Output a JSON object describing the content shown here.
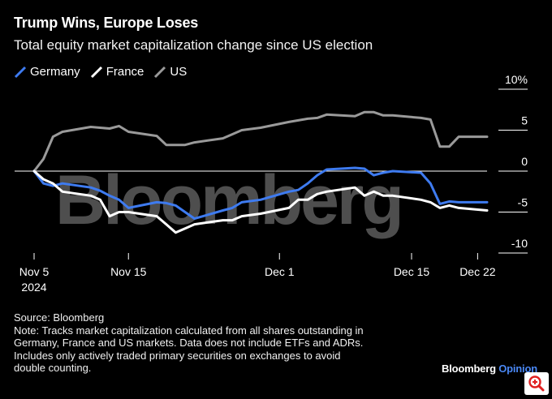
{
  "title": "Trump Wins, Europe Loses",
  "subtitle": "Total equity market capitalization change since US election",
  "legend": [
    {
      "label": "Germany",
      "color": "#3e7bf0"
    },
    {
      "label": "France",
      "color": "#ffffff"
    },
    {
      "label": "US",
      "color": "#9a9a9a"
    }
  ],
  "watermark": "Bloomberg",
  "footer": {
    "source": "Source: Bloomberg",
    "note_lines": [
      "Note: Tracks market capitalization calculated from all shares outstanding in",
      "Germany, France and US markets. Data does not include ETFs and ADRs.",
      "Includes only actively traded primary securities on exchanges to avoid",
      "double counting."
    ]
  },
  "brand": {
    "name": "Bloomberg",
    "suffix": "Opinion"
  },
  "zoom_icon": "zoom-in-icon",
  "chart_data": {
    "type": "line",
    "title": "Trump Wins, Europe Loses",
    "subtitle": "Total equity market capitalization change since US election",
    "ylabel": "",
    "ylim": [
      -10,
      10
    ],
    "y_ticks": [
      10,
      5,
      0,
      -5,
      -10
    ],
    "y_tick_labels": [
      "10%",
      "5",
      "0",
      "-5",
      "-10"
    ],
    "x_range": [
      "2024-11-05",
      "2024-12-23"
    ],
    "x_ticks": [
      {
        "date": "2024-11-05",
        "label": "Nov 5",
        "sublabel": "2024"
      },
      {
        "date": "2024-11-15",
        "label": "Nov 15",
        "sublabel": ""
      },
      {
        "date": "2024-12-01",
        "label": "Dec 1",
        "sublabel": ""
      },
      {
        "date": "2024-12-15",
        "label": "Dec 15",
        "sublabel": ""
      },
      {
        "date": "2024-12-22",
        "label": "Dec 22",
        "sublabel": ""
      }
    ],
    "zero_line": true,
    "grid": false,
    "legend_position": "top-left",
    "series": [
      {
        "name": "US",
        "color": "#9a9a9a",
        "points": [
          [
            "2024-11-05",
            0
          ],
          [
            "2024-11-06",
            1.5
          ],
          [
            "2024-11-07",
            4.2
          ],
          [
            "2024-11-08",
            4.8
          ],
          [
            "2024-11-11",
            5.4
          ],
          [
            "2024-11-12",
            5.3
          ],
          [
            "2024-11-13",
            5.2
          ],
          [
            "2024-11-14",
            5.5
          ],
          [
            "2024-11-15",
            4.8
          ],
          [
            "2024-11-18",
            4.3
          ],
          [
            "2024-11-19",
            3.2
          ],
          [
            "2024-11-20",
            3.2
          ],
          [
            "2024-11-21",
            3.2
          ],
          [
            "2024-11-22",
            3.5
          ],
          [
            "2024-11-25",
            4.0
          ],
          [
            "2024-11-26",
            4.5
          ],
          [
            "2024-11-27",
            5.0
          ],
          [
            "2024-11-29",
            5.3
          ],
          [
            "2024-12-02",
            6.0
          ],
          [
            "2024-12-03",
            6.2
          ],
          [
            "2024-12-04",
            6.4
          ],
          [
            "2024-12-05",
            6.5
          ],
          [
            "2024-12-06",
            6.9
          ],
          [
            "2024-12-09",
            6.7
          ],
          [
            "2024-12-10",
            7.2
          ],
          [
            "2024-12-11",
            7.2
          ],
          [
            "2024-12-12",
            6.8
          ],
          [
            "2024-12-13",
            6.8
          ],
          [
            "2024-12-16",
            6.5
          ],
          [
            "2024-12-17",
            6.3
          ],
          [
            "2024-12-18",
            3.0
          ],
          [
            "2024-12-19",
            3.0
          ],
          [
            "2024-12-20",
            4.2
          ],
          [
            "2024-12-23",
            4.2
          ]
        ]
      },
      {
        "name": "Germany",
        "color": "#3e7bf0",
        "points": [
          [
            "2024-11-05",
            0
          ],
          [
            "2024-11-06",
            -1.5
          ],
          [
            "2024-11-07",
            -1.8
          ],
          [
            "2024-11-08",
            -1.5
          ],
          [
            "2024-11-11",
            -2.0
          ],
          [
            "2024-11-12",
            -2.4
          ],
          [
            "2024-11-13",
            -3.0
          ],
          [
            "2024-11-14",
            -3.5
          ],
          [
            "2024-11-15",
            -4.5
          ],
          [
            "2024-11-18",
            -3.8
          ],
          [
            "2024-11-19",
            -3.9
          ],
          [
            "2024-11-20",
            -4.2
          ],
          [
            "2024-11-21",
            -5.0
          ],
          [
            "2024-11-22",
            -5.8
          ],
          [
            "2024-11-25",
            -4.8
          ],
          [
            "2024-11-26",
            -4.5
          ],
          [
            "2024-11-27",
            -3.8
          ],
          [
            "2024-11-29",
            -3.5
          ],
          [
            "2024-12-02",
            -2.5
          ],
          [
            "2024-12-03",
            -2.3
          ],
          [
            "2024-12-04",
            -1.5
          ],
          [
            "2024-12-05",
            -0.5
          ],
          [
            "2024-12-06",
            0.2
          ],
          [
            "2024-12-09",
            0.4
          ],
          [
            "2024-12-10",
            0.3
          ],
          [
            "2024-12-11",
            -0.5
          ],
          [
            "2024-12-12",
            -0.2
          ],
          [
            "2024-12-13",
            0.0
          ],
          [
            "2024-12-16",
            -0.2
          ],
          [
            "2024-12-17",
            -1.5
          ],
          [
            "2024-12-18",
            -4.0
          ],
          [
            "2024-12-19",
            -3.7
          ],
          [
            "2024-12-20",
            -3.8
          ],
          [
            "2024-12-23",
            -3.8
          ]
        ]
      },
      {
        "name": "France",
        "color": "#ffffff",
        "points": [
          [
            "2024-11-05",
            0
          ],
          [
            "2024-11-06",
            -1.0
          ],
          [
            "2024-11-07",
            -1.5
          ],
          [
            "2024-11-08",
            -2.5
          ],
          [
            "2024-11-11",
            -3.0
          ],
          [
            "2024-11-12",
            -3.5
          ],
          [
            "2024-11-13",
            -5.5
          ],
          [
            "2024-11-14",
            -5.0
          ],
          [
            "2024-11-15",
            -5.0
          ],
          [
            "2024-11-18",
            -5.5
          ],
          [
            "2024-11-19",
            -6.5
          ],
          [
            "2024-11-20",
            -7.5
          ],
          [
            "2024-11-21",
            -7.0
          ],
          [
            "2024-11-22",
            -6.5
          ],
          [
            "2024-11-25",
            -6.0
          ],
          [
            "2024-11-26",
            -6.0
          ],
          [
            "2024-11-27",
            -5.5
          ],
          [
            "2024-11-29",
            -5.2
          ],
          [
            "2024-12-02",
            -4.5
          ],
          [
            "2024-12-03",
            -3.5
          ],
          [
            "2024-12-04",
            -3.5
          ],
          [
            "2024-12-05",
            -2.8
          ],
          [
            "2024-12-06",
            -2.5
          ],
          [
            "2024-12-09",
            -2.0
          ],
          [
            "2024-12-10",
            -3.0
          ],
          [
            "2024-12-11",
            -2.5
          ],
          [
            "2024-12-12",
            -3.0
          ],
          [
            "2024-12-13",
            -3.0
          ],
          [
            "2024-12-16",
            -3.5
          ],
          [
            "2024-12-17",
            -3.8
          ],
          [
            "2024-12-18",
            -4.5
          ],
          [
            "2024-12-19",
            -4.2
          ],
          [
            "2024-12-20",
            -4.5
          ],
          [
            "2024-12-23",
            -4.8
          ]
        ]
      }
    ]
  }
}
